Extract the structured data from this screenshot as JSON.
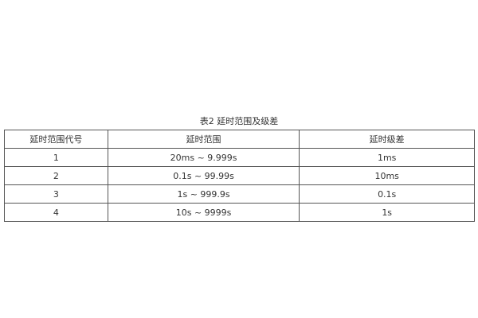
{
  "title": "表2  延时范围及级差",
  "table": {
    "headers": [
      "延时范围代号",
      "延时范围",
      "延时级差"
    ],
    "rows": [
      [
        "1",
        "20ms ~ 9.999s",
        "1ms"
      ],
      [
        "2",
        "0.1s ~ 99.99s",
        "10ms"
      ],
      [
        "3",
        "1s ~ 999.9s",
        "0.1s"
      ],
      [
        "4",
        "10s ~ 9999s",
        "1s"
      ]
    ]
  }
}
